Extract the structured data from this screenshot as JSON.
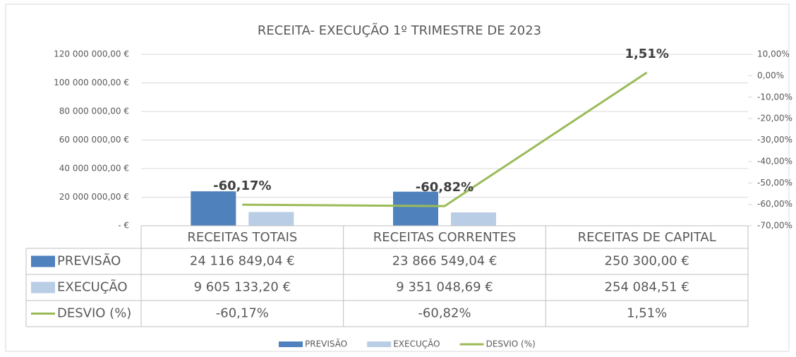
{
  "chart_data": {
    "type": "bar",
    "title": "RECEITA- EXECUÇÃO 1º TRIMESTRE DE 2023",
    "categories": [
      "RECEITAS TOTAIS",
      "RECEITAS CORRENTES",
      "RECEITAS DE CAPITAL"
    ],
    "series": [
      {
        "name": "PREVISÃO",
        "type": "bar",
        "color": "#4f81bd",
        "values": [
          24116849.04,
          23866549.04,
          250300.0
        ],
        "value_labels": [
          "24 116 849,04 €",
          "23 866 549,04 €",
          "250 300,00 €"
        ]
      },
      {
        "name": "EXECUÇÃO",
        "type": "bar",
        "color": "#b9cde5",
        "values": [
          9605133.2,
          9351048.69,
          254084.51
        ],
        "value_labels": [
          "9 605 133,20 €",
          "9 351 048,69 €",
          "254 084,51 €"
        ]
      },
      {
        "name": "DESVIO (%)",
        "type": "line",
        "axis": "y2",
        "color": "#9bbb59",
        "values": [
          -60.17,
          -60.82,
          1.51
        ],
        "value_labels": [
          "-60,17%",
          "-60,82%",
          "1,51%"
        ]
      }
    ],
    "ylim": [
      0,
      120000000
    ],
    "yticks": [
      {
        "value": 0,
        "label": "-   €"
      },
      {
        "value": 20000000,
        "label": "20 000 000,00 €"
      },
      {
        "value": 40000000,
        "label": "40 000 000,00 €"
      },
      {
        "value": 60000000,
        "label": "60 000 000,00 €"
      },
      {
        "value": 80000000,
        "label": "80 000 000,00 €"
      },
      {
        "value": 100000000,
        "label": "100 000 000,00 €"
      },
      {
        "value": 120000000,
        "label": "120 000 000,00 €"
      }
    ],
    "y2lim": [
      -70,
      10
    ],
    "y2ticks": [
      {
        "value": -70,
        "label": "-70,00%"
      },
      {
        "value": -60,
        "label": "-60,00%"
      },
      {
        "value": -50,
        "label": "-50,00%"
      },
      {
        "value": -40,
        "label": "-40,00%"
      },
      {
        "value": -30,
        "label": "-30,00%"
      },
      {
        "value": -20,
        "label": "-20,00%"
      },
      {
        "value": -10,
        "label": "-10,00%"
      },
      {
        "value": 0,
        "label": "0,00%"
      },
      {
        "value": 10,
        "label": "10,00%"
      }
    ],
    "grid": true,
    "legend": "bottom",
    "data_table": true
  }
}
